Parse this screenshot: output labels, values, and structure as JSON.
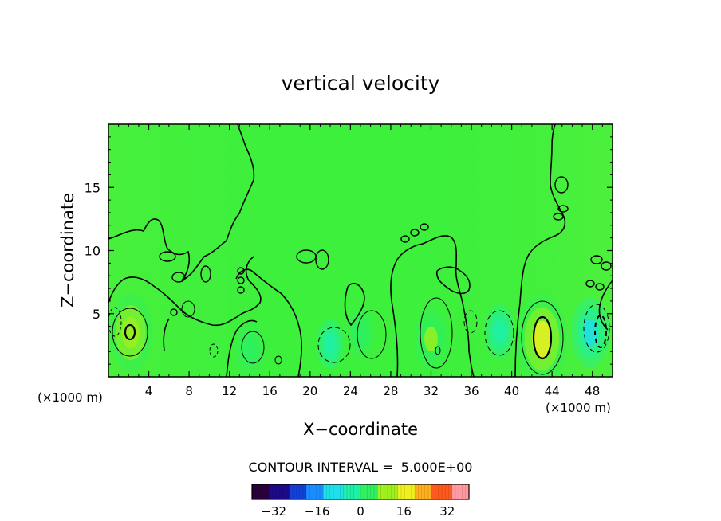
{
  "chart_data": {
    "type": "heatmap",
    "title": "vertical velocity",
    "xlabel": "X−coordinate",
    "ylabel": "Z−coordinate",
    "x_unit_left": "(×1000 m)",
    "x_unit_right": "(×1000 m)",
    "xlim": [
      0,
      50
    ],
    "ylim": [
      0,
      20
    ],
    "x_ticks": [
      4,
      8,
      12,
      16,
      20,
      24,
      28,
      32,
      36,
      40,
      44,
      48
    ],
    "y_ticks": [
      5,
      10,
      15
    ],
    "contour_interval_label": "CONTOUR INTERVAL =  5.000E+00",
    "colorbar": {
      "ticks": [
        -32,
        -16,
        0,
        16,
        32
      ],
      "range": [
        -40,
        40
      ],
      "colors": [
        "#2a003a",
        "#1c0a8a",
        "#1240d8",
        "#1a8cff",
        "#1ee0e8",
        "#1ef0a8",
        "#2ef060",
        "#9ef01e",
        "#f0f01e",
        "#ffb01e",
        "#ff5a1e",
        "#ff9aa0"
      ]
    },
    "background_color": "#3cf03c",
    "features": [
      {
        "kind": "updraft",
        "x": 2.2,
        "z": 3.5,
        "peak": 12
      },
      {
        "kind": "updraft",
        "x": 14.0,
        "z": 2.2,
        "peak": 6
      },
      {
        "kind": "updraft",
        "x": 25.0,
        "z": 3.5,
        "peak": 5
      },
      {
        "kind": "updraft",
        "x": 32.0,
        "z": 3.0,
        "peak": 8
      },
      {
        "kind": "updraft",
        "x": 43.0,
        "z": 3.0,
        "peak": 15
      },
      {
        "kind": "downdraft",
        "x": 22.0,
        "z": 2.6,
        "peak": -5
      },
      {
        "kind": "downdraft",
        "x": 38.8,
        "z": 3.6,
        "peak": -6
      },
      {
        "kind": "downdraft",
        "x": 47.8,
        "z": 3.5,
        "peak": -10
      }
    ]
  }
}
